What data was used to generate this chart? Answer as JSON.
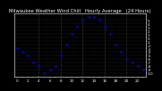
{
  "title": "Milwaukee Weather Wind Chill   Hourly Average   (24 Hours)",
  "hours": [
    0,
    1,
    2,
    3,
    4,
    5,
    6,
    7,
    8,
    9,
    10,
    11,
    12,
    13,
    14,
    15,
    16,
    17,
    18,
    19,
    20,
    21,
    22,
    23
  ],
  "wind_chill": [
    -3,
    -4,
    -5,
    -7,
    -8,
    -10,
    -9,
    -8,
    -5,
    -2,
    1,
    3,
    5,
    6,
    6,
    5,
    3,
    1,
    -2,
    -4,
    -6,
    -7,
    -8,
    -9
  ],
  "ylim": [
    -11,
    7
  ],
  "xlim": [
    -0.5,
    23.5
  ],
  "dot_color": "#0000dd",
  "bg_color": "#000000",
  "plot_bg_color": "#000000",
  "grid_color": "#555555",
  "title_color": "#ffffff",
  "axis_color": "#ffffff",
  "title_fontsize": 3.8,
  "tick_fontsize": 3.0,
  "y_tick_vals": [
    5,
    4,
    3,
    2,
    1,
    0,
    -1,
    -2,
    -3,
    -4,
    -5,
    -6,
    -7,
    -8,
    -9,
    -10
  ],
  "y_tick_labels": [
    "5",
    "4",
    "3",
    "2",
    "1",
    "0",
    "-1",
    "-2",
    "-3",
    "-4",
    "-5",
    "-6",
    "-7",
    "-8",
    "-9",
    "-10"
  ],
  "x_tick_show": [
    0,
    2,
    4,
    6,
    8,
    10,
    12,
    14,
    16,
    18,
    20,
    22
  ],
  "vgrid_positions": [
    4,
    8,
    12,
    16,
    20
  ]
}
